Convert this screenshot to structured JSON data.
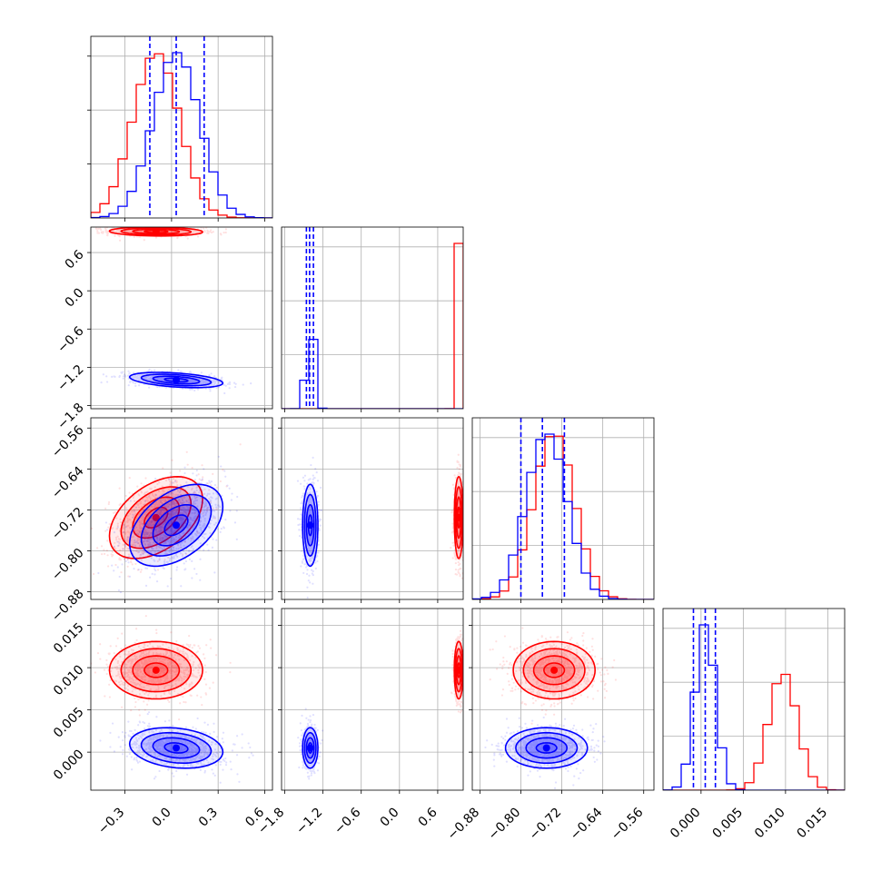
{
  "chart_data": {
    "type": "corner",
    "colors": {
      "red_series": "#ff0000",
      "blue_series": "#0000ff",
      "grid": "#b0b0b0"
    },
    "grid": true,
    "parameters": [
      {
        "ticks": [
          "−0.3",
          "0.0",
          "0.3",
          "0.6"
        ],
        "range": [
          -0.52,
          0.65
        ]
      },
      {
        "ticks": [
          "−1.8",
          "−1.2",
          "−0.6",
          "0.0",
          "0.6"
        ],
        "range": [
          -1.85,
          1.0
        ]
      },
      {
        "ticks": [
          "−0.88",
          "−0.80",
          "−0.72",
          "−0.64",
          "−0.56"
        ],
        "range": [
          -0.895,
          -0.54
        ]
      },
      {
        "ticks": [
          "0.000",
          "0.005",
          "0.010",
          "0.015"
        ],
        "range": [
          -0.0045,
          0.017
        ]
      }
    ],
    "series": [
      {
        "color": "red",
        "means": [
          -0.1,
          0.93,
          -0.735,
          0.0097
        ],
        "sigmas": [
          0.15,
          0.035,
          0.04,
          0.0017
        ],
        "corr_01": -0.1,
        "corr_02": 0.45,
        "corr_03": 0.0,
        "corr_12": 0.0,
        "corr_13": 0.0,
        "corr_23": 0.0
      },
      {
        "color": "blue",
        "means": [
          0.03,
          -1.4,
          -0.75,
          0.0005
        ],
        "sigmas": [
          0.15,
          0.06,
          0.04,
          0.0012
        ],
        "corr_01": -0.4,
        "corr_02": 0.45,
        "corr_03": -0.2,
        "corr_12": 0.0,
        "corr_13": 0.0,
        "corr_23": 0.0
      }
    ],
    "quantile_lines": [
      {
        "param": 0,
        "values": [
          -0.14,
          0.03,
          0.21
        ]
      },
      {
        "param": 1,
        "values": [
          -1.46,
          -1.41,
          -1.35
        ]
      },
      {
        "param": 2,
        "values": [
          -0.8,
          -0.758,
          -0.715
        ]
      },
      {
        "param": 3,
        "values": [
          -0.0009,
          0.0005,
          0.0017
        ]
      }
    ],
    "tick_labels": {
      "x0": "−0.3",
      "x1": "0.0",
      "x2": "0.3",
      "x3": "0.6"
    }
  }
}
